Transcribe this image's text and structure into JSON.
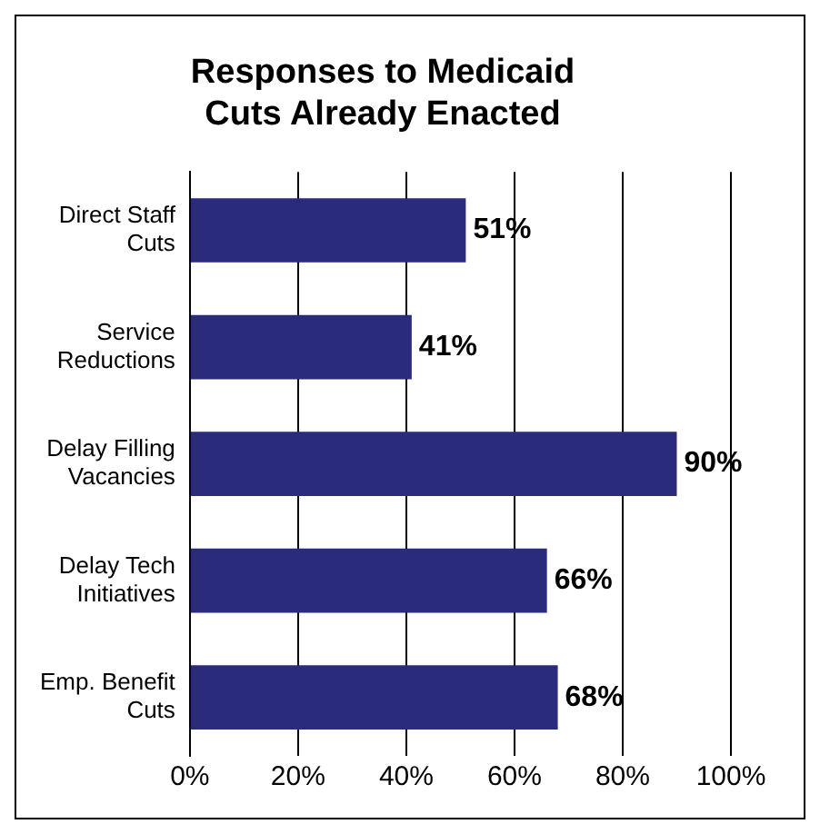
{
  "chart_data": {
    "type": "bar",
    "orientation": "horizontal",
    "title": "Responses to Medicaid Cuts Already Enacted",
    "categories": [
      "Direct Staff Cuts",
      "Service Reductions",
      "Delay Filling Vacancies",
      "Delay Tech Initiatives",
      "Emp. Benefit Cuts"
    ],
    "values": [
      51,
      41,
      90,
      66,
      68
    ],
    "color": "#2b2b7e",
    "xlim": [
      0,
      100
    ],
    "xticks": [
      {
        "value": 0,
        "label": "0%"
      },
      {
        "value": 20,
        "label": "20%"
      },
      {
        "value": 40,
        "label": "40%"
      },
      {
        "value": 60,
        "label": "60%"
      },
      {
        "value": 80,
        "label": "80%"
      },
      {
        "value": 100,
        "label": "100%"
      }
    ],
    "value_labels": [
      "51%",
      "41%",
      "90%",
      "66%",
      "68%"
    ],
    "grid": "x",
    "legend": false
  }
}
